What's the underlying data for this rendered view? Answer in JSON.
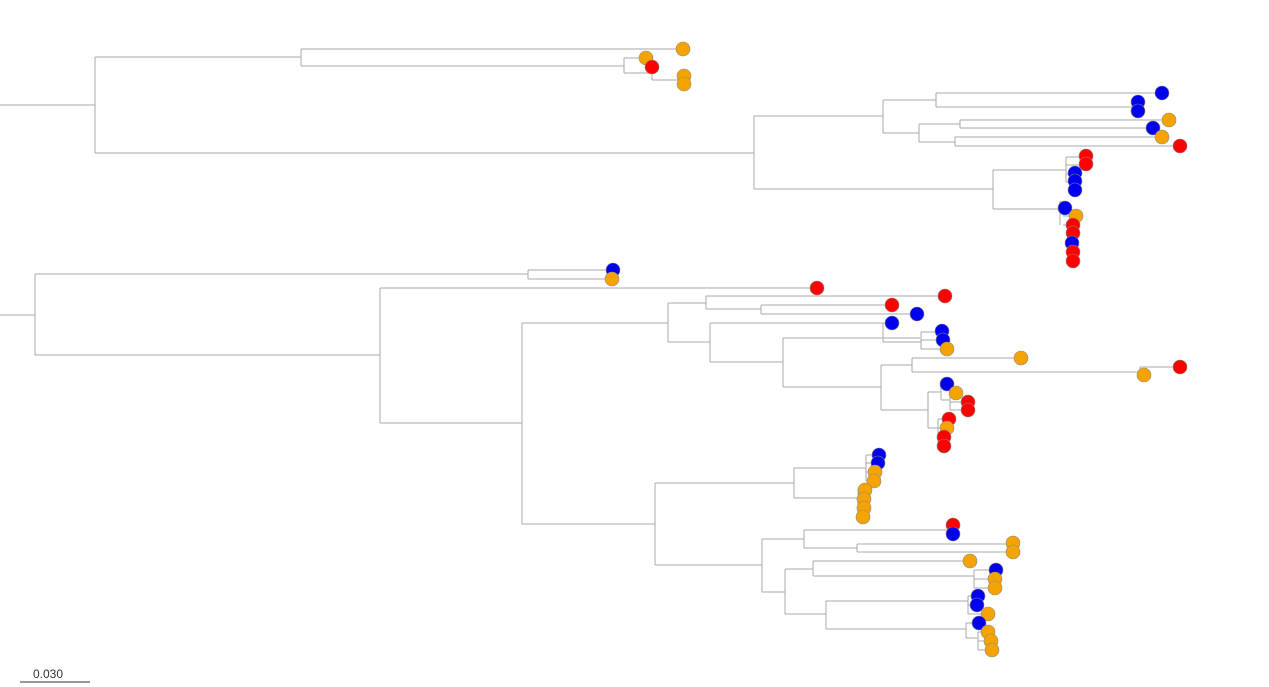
{
  "scale_bar": {
    "label": "0.030",
    "value": 0.03
  },
  "colors": {
    "branch": "#a8a8a8",
    "orange": "#f5a300",
    "red": "#ff0000",
    "blue": "#0000ee"
  },
  "tip_groups": [
    "orange",
    "red",
    "blue"
  ]
}
